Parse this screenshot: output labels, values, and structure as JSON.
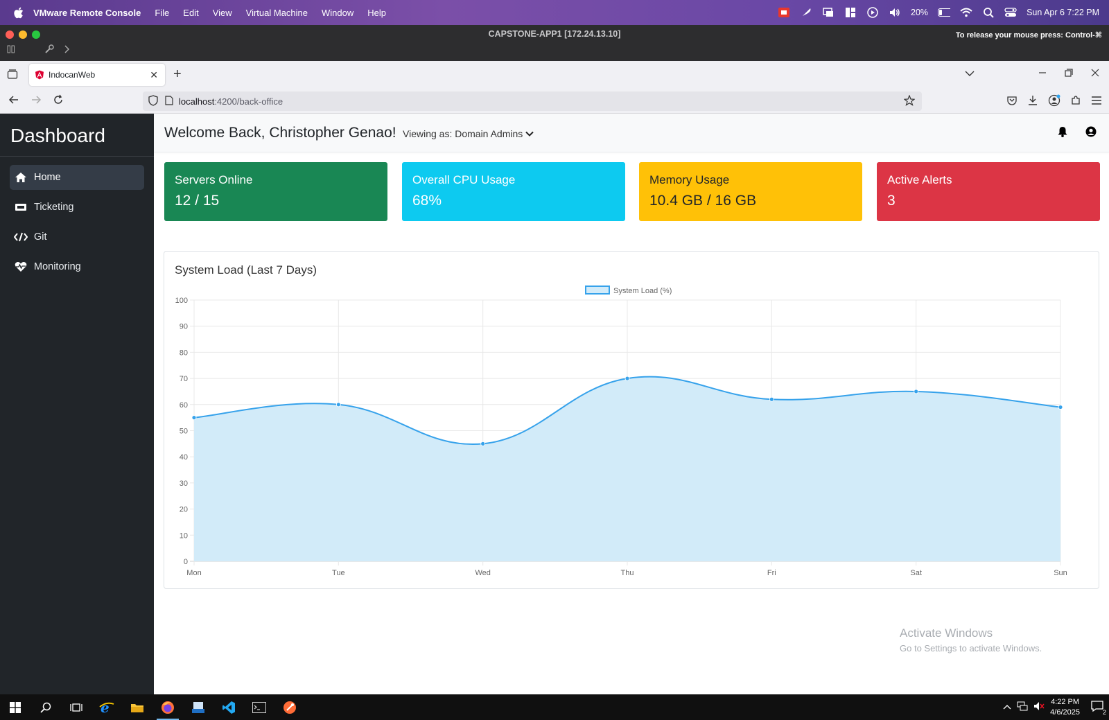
{
  "mac_menubar": {
    "app_name": "VMware Remote Console",
    "menus": [
      "File",
      "Edit",
      "View",
      "Virtual Machine",
      "Window",
      "Help"
    ],
    "battery": "20%",
    "datetime": "Sun Apr 6  7:22 PM"
  },
  "vm_window": {
    "title": "CAPSTONE-APP1 [172.24.13.10]",
    "release_hint": "To release your mouse press: Control-⌘"
  },
  "browser": {
    "tab_title": "IndocanWeb",
    "url_host": "localhost",
    "url_path": ":4200/back-office"
  },
  "sidebar": {
    "brand": "Dashboard",
    "items": [
      {
        "label": "Home",
        "icon": "home-icon",
        "active": true
      },
      {
        "label": "Ticketing",
        "icon": "ticket-icon",
        "active": false
      },
      {
        "label": "Git",
        "icon": "code-icon",
        "active": false
      },
      {
        "label": "Monitoring",
        "icon": "heartbeat-icon",
        "active": false
      }
    ]
  },
  "header": {
    "welcome": "Welcome Back, Christopher Genao!",
    "viewing_as": "Viewing as: Domain Admins"
  },
  "stats": [
    {
      "label": "Servers Online",
      "value": "12 / 15",
      "color": "#198754"
    },
    {
      "label": "Overall CPU Usage",
      "value": "68%",
      "color": "#0dcaf0"
    },
    {
      "label": "Memory Usage",
      "value": "10.4 GB / 16 GB",
      "color": "#ffc107"
    },
    {
      "label": "Active Alerts",
      "value": "3",
      "color": "#dc3545"
    }
  ],
  "chart_card_title": "System Load (Last 7 Days)",
  "chart_data": {
    "type": "area",
    "x": [
      "Mon",
      "Tue",
      "Wed",
      "Thu",
      "Fri",
      "Sat",
      "Sun"
    ],
    "series": [
      {
        "name": "System Load (%)",
        "values": [
          55,
          60,
          45,
          70,
          62,
          65,
          59
        ],
        "color": "#36a2eb",
        "fill": "#d2ebf9"
      }
    ],
    "ylim": [
      0,
      100
    ],
    "yticks": [
      0,
      10,
      20,
      30,
      40,
      50,
      60,
      70,
      80,
      90,
      100
    ],
    "legend": "top-center",
    "grid": true
  },
  "watermark": {
    "line1": "Activate Windows",
    "line2": "Go to Settings to activate Windows."
  },
  "taskbar": {
    "time": "4:22 PM",
    "date": "4/6/2025",
    "notification_count": "2"
  }
}
